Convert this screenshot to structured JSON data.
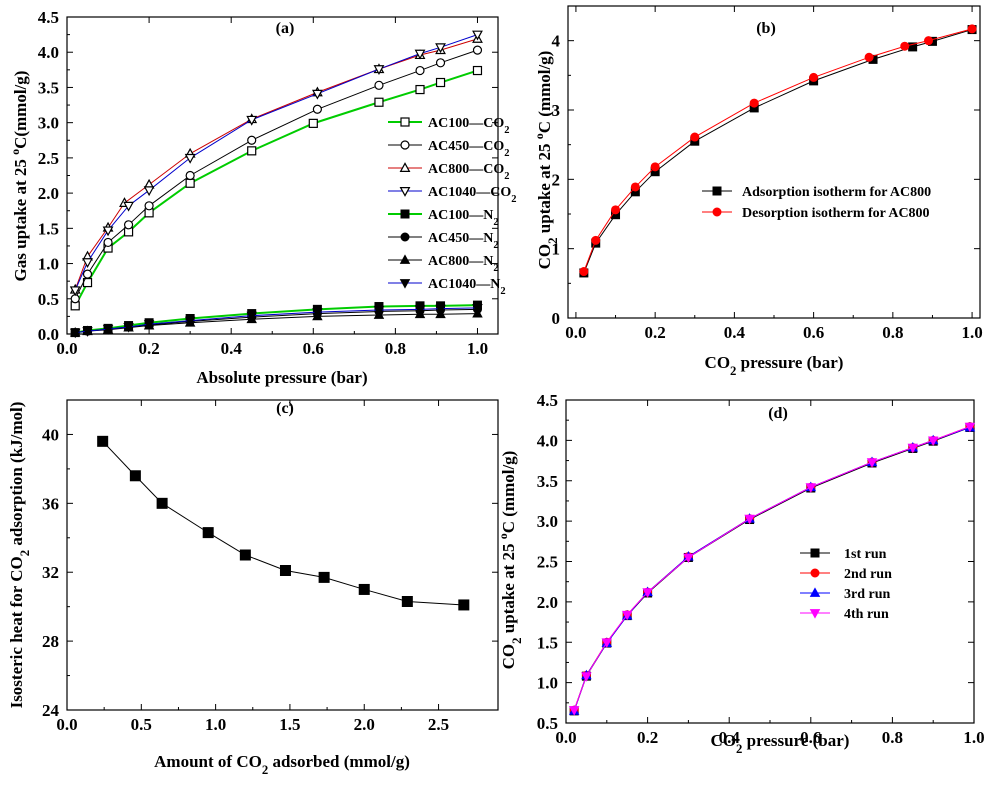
{
  "chart_data": [
    {
      "id": "a",
      "type": "line",
      "panel_label": "(a)",
      "xlabel": "Absolute pressure (bar)",
      "ylabel": "Gas uptake at 25 °C(mmol/g)",
      "xlim": [
        0.0,
        1.05
      ],
      "ylim": [
        0.0,
        4.5
      ],
      "xticks": [
        "0.0",
        "0.2",
        "0.4",
        "0.6",
        "0.8",
        "1.0"
      ],
      "yticks": [
        "0.0",
        "0.5",
        "1.0",
        "1.5",
        "2.0",
        "2.5",
        "3.0",
        "3.5",
        "4.0",
        "4.5"
      ],
      "legend_position": "right-center",
      "series": [
        {
          "name": "AC100—CO2",
          "color": "#00cc00",
          "marker": "square-open",
          "x": [
            0.02,
            0.05,
            0.1,
            0.15,
            0.2,
            0.3,
            0.45,
            0.6,
            0.76,
            0.86,
            0.91,
            1.0
          ],
          "y": [
            0.4,
            0.73,
            1.22,
            1.45,
            1.72,
            2.14,
            2.6,
            2.99,
            3.29,
            3.47,
            3.57,
            3.74
          ]
        },
        {
          "name": "AC450—CO2",
          "color": "#000000",
          "marker": "circle-open",
          "x": [
            0.02,
            0.05,
            0.1,
            0.15,
            0.2,
            0.3,
            0.45,
            0.61,
            0.76,
            0.86,
            0.91,
            1.0
          ],
          "y": [
            0.5,
            0.85,
            1.3,
            1.55,
            1.82,
            2.25,
            2.75,
            3.19,
            3.53,
            3.74,
            3.85,
            4.03
          ]
        },
        {
          "name": "AC800—CO2",
          "color": "#cc0000",
          "marker": "triangle-up-open",
          "x": [
            0.02,
            0.05,
            0.1,
            0.14,
            0.2,
            0.3,
            0.45,
            0.61,
            0.76,
            0.86,
            0.91,
            1.0
          ],
          "y": [
            0.63,
            1.1,
            1.51,
            1.86,
            2.12,
            2.56,
            3.05,
            3.43,
            3.76,
            3.96,
            4.03,
            4.19
          ]
        },
        {
          "name": "AC1040—CO2",
          "color": "#0000cc",
          "marker": "triangle-down-open",
          "x": [
            0.02,
            0.05,
            0.1,
            0.15,
            0.2,
            0.3,
            0.45,
            0.61,
            0.76,
            0.86,
            0.91,
            1.0
          ],
          "y": [
            0.62,
            1.02,
            1.47,
            1.82,
            2.04,
            2.5,
            3.04,
            3.41,
            3.76,
            3.98,
            4.07,
            4.25
          ]
        },
        {
          "name": "AC100—N2",
          "color": "#00cc00",
          "marker": "square",
          "x": [
            0.02,
            0.05,
            0.1,
            0.15,
            0.2,
            0.3,
            0.45,
            0.61,
            0.76,
            0.86,
            0.91,
            1.0
          ],
          "y": [
            0.02,
            0.05,
            0.08,
            0.12,
            0.16,
            0.22,
            0.29,
            0.35,
            0.39,
            0.4,
            0.4,
            0.41
          ]
        },
        {
          "name": "AC450—N2",
          "color": "#000000",
          "marker": "circle",
          "x": [
            0.02,
            0.05,
            0.1,
            0.15,
            0.2,
            0.3,
            0.45,
            0.61,
            0.76,
            0.86,
            0.91,
            1.0
          ],
          "y": [
            0.02,
            0.04,
            0.07,
            0.1,
            0.13,
            0.18,
            0.24,
            0.29,
            0.32,
            0.33,
            0.34,
            0.35
          ]
        },
        {
          "name": "AC800—N2",
          "color": "#000000",
          "marker": "triangle-up",
          "x": [
            0.02,
            0.05,
            0.1,
            0.15,
            0.2,
            0.3,
            0.45,
            0.61,
            0.76,
            0.86,
            0.91,
            1.0
          ],
          "y": [
            0.02,
            0.04,
            0.06,
            0.09,
            0.12,
            0.16,
            0.21,
            0.25,
            0.27,
            0.28,
            0.28,
            0.29
          ]
        },
        {
          "name": "AC1040—N2",
          "color": "#0000cc",
          "marker": "triangle-down",
          "x": [
            0.02,
            0.05,
            0.1,
            0.15,
            0.2,
            0.3,
            0.45,
            0.61,
            0.76,
            0.86,
            0.91,
            1.0
          ],
          "y": [
            0.02,
            0.04,
            0.07,
            0.1,
            0.14,
            0.19,
            0.26,
            0.31,
            0.34,
            0.35,
            0.36,
            0.37
          ]
        }
      ]
    },
    {
      "id": "b",
      "type": "line",
      "panel_label": "(b)",
      "xlabel": "CO2 pressure (bar)",
      "ylabel": "CO2 uptake at 25 °C (mmol/g)",
      "xlim": [
        -0.02,
        1.02
      ],
      "ylim": [
        0,
        4.5
      ],
      "xticks": [
        "0.0",
        "0.2",
        "0.4",
        "0.6",
        "0.8",
        "1.0"
      ],
      "yticks": [
        "0",
        "1",
        "2",
        "3",
        "4"
      ],
      "legend_position": "center-right",
      "series": [
        {
          "name": "Adsorption isotherm for AC800",
          "color": "#000000",
          "marker": "square",
          "x": [
            0.02,
            0.05,
            0.1,
            0.15,
            0.2,
            0.3,
            0.45,
            0.6,
            0.75,
            0.85,
            0.9,
            1.0
          ],
          "y": [
            0.65,
            1.08,
            1.49,
            1.82,
            2.11,
            2.55,
            3.03,
            3.42,
            3.73,
            3.91,
            3.99,
            4.16
          ]
        },
        {
          "name": "Desorption isotherm for AC800",
          "color": "#ff0000",
          "marker": "circle",
          "x": [
            0.02,
            0.05,
            0.1,
            0.15,
            0.2,
            0.3,
            0.45,
            0.6,
            0.74,
            0.83,
            0.89,
            1.0
          ],
          "y": [
            0.67,
            1.12,
            1.56,
            1.89,
            2.18,
            2.61,
            3.1,
            3.47,
            3.76,
            3.92,
            4.0,
            4.17
          ]
        }
      ]
    },
    {
      "id": "c",
      "type": "line",
      "panel_label": "(c)",
      "xlabel": "Amount of CO2 adsorbed (mmol/g)",
      "ylabel": "Isosteric heat for CO2 adsorption (kJ/mol)",
      "xlim": [
        0.0,
        2.9
      ],
      "ylim": [
        24,
        42
      ],
      "xticks": [
        "0.0",
        "0.5",
        "1.0",
        "1.5",
        "2.0",
        "2.5"
      ],
      "yticks": [
        "24",
        "28",
        "32",
        "36",
        "40"
      ],
      "series": [
        {
          "name": "",
          "color": "#000000",
          "marker": "square",
          "x": [
            0.24,
            0.46,
            0.64,
            0.95,
            1.2,
            1.47,
            1.73,
            2.0,
            2.29,
            2.67
          ],
          "y": [
            39.6,
            37.6,
            36.0,
            34.3,
            33.0,
            32.1,
            31.7,
            31.0,
            30.3,
            30.1
          ]
        }
      ]
    },
    {
      "id": "d",
      "type": "line",
      "panel_label": "(d)",
      "xlabel": "CO2 pressure (bar)",
      "ylabel": "CO2 uptake at 25 °C (mmol/g)",
      "xlim": [
        0.0,
        1.0
      ],
      "ylim": [
        0.5,
        4.5
      ],
      "xticks": [
        "0.0",
        "0.2",
        "0.4",
        "0.6",
        "0.8",
        "1.0"
      ],
      "yticks": [
        "0.5",
        "1.0",
        "1.5",
        "2.0",
        "2.5",
        "3.0",
        "3.5",
        "4.0",
        "4.5"
      ],
      "legend_position": "right-center",
      "series": [
        {
          "name": "1st run",
          "color": "#000000",
          "marker": "square",
          "x": [
            0.02,
            0.05,
            0.1,
            0.15,
            0.2,
            0.3,
            0.45,
            0.6,
            0.75,
            0.85,
            0.9,
            0.99
          ],
          "y": [
            0.65,
            1.08,
            1.49,
            1.83,
            2.11,
            2.55,
            3.02,
            3.41,
            3.72,
            3.9,
            3.99,
            4.16
          ]
        },
        {
          "name": "2nd run",
          "color": "#ff0000",
          "marker": "circle",
          "x": [
            0.02,
            0.05,
            0.1,
            0.15,
            0.2,
            0.3,
            0.45,
            0.6,
            0.75,
            0.85,
            0.9,
            0.99
          ],
          "y": [
            0.66,
            1.09,
            1.5,
            1.84,
            2.12,
            2.56,
            3.03,
            3.42,
            3.73,
            3.91,
            4.0,
            4.17
          ]
        },
        {
          "name": "3rd run",
          "color": "#0000ff",
          "marker": "triangle-up",
          "x": [
            0.02,
            0.05,
            0.1,
            0.15,
            0.2,
            0.3,
            0.45,
            0.6,
            0.75,
            0.85,
            0.9,
            0.99
          ],
          "y": [
            0.65,
            1.09,
            1.49,
            1.83,
            2.12,
            2.56,
            3.03,
            3.42,
            3.73,
            3.91,
            4.0,
            4.16
          ]
        },
        {
          "name": "4th run",
          "color": "#ff00ff",
          "marker": "triangle-down",
          "x": [
            0.02,
            0.05,
            0.1,
            0.15,
            0.2,
            0.3,
            0.45,
            0.6,
            0.75,
            0.85,
            0.9,
            0.99
          ],
          "y": [
            0.66,
            1.08,
            1.5,
            1.84,
            2.12,
            2.55,
            3.03,
            3.42,
            3.73,
            3.91,
            4.0,
            4.17
          ]
        }
      ]
    }
  ]
}
